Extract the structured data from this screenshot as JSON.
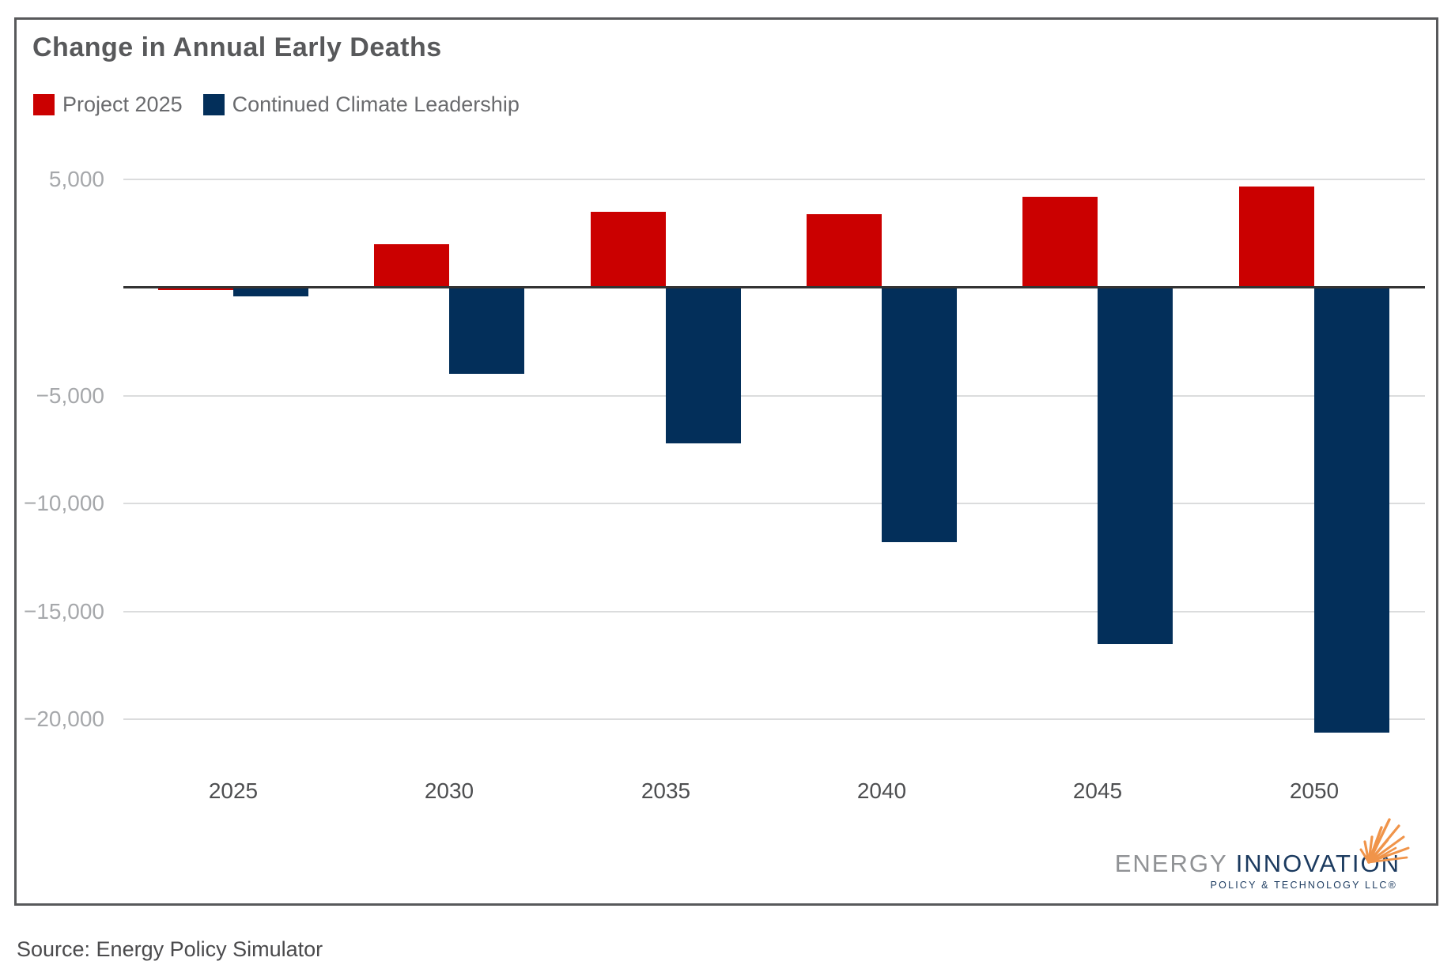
{
  "title": "Change in Annual Early Deaths",
  "source": "Source: Energy Policy Simulator",
  "legend": {
    "items": [
      {
        "label": "Project 2025"
      },
      {
        "label": "Continued Climate Leadership"
      }
    ]
  },
  "logo": {
    "word1": "ENERGY",
    "word2": "INNOVATION",
    "subtext": "POLICY & TECHNOLOGY LLC®",
    "gray": "#909295",
    "navy": "#1B3A5F",
    "orange": "#F0944A"
  },
  "colors": {
    "project_2025": "#CB0000",
    "continued_climate_leadership": "#032F5A",
    "gridline": "#DBDCDD",
    "zero_axis": "#333333",
    "panel_border": "#58595B",
    "title_text": "#58595B",
    "y_tick_text": "#A6A8AB",
    "x_tick_text": "#4D4E50"
  },
  "chart_data": {
    "type": "bar",
    "title": "Change in Annual Early Deaths",
    "categories": [
      "2025",
      "2030",
      "2035",
      "2040",
      "2045",
      "2050"
    ],
    "series": [
      {
        "name": "Project 2025",
        "color": "#CB0000",
        "values": [
          -100,
          2000,
          3500,
          3400,
          4200,
          4700
        ]
      },
      {
        "name": "Continued Climate Leadership",
        "color": "#032F5A",
        "values": [
          -400,
          -4000,
          -7200,
          -11800,
          -16500,
          -20600
        ]
      }
    ],
    "xlabel": "",
    "ylabel": "",
    "ylim": [
      -21500,
      5500
    ],
    "yticks": [
      {
        "value": 5000,
        "label": "5,000"
      },
      {
        "value": -5000,
        "label": "−5,000"
      },
      {
        "value": -10000,
        "label": "−10,000"
      },
      {
        "value": -15000,
        "label": "−15,000"
      },
      {
        "value": -20000,
        "label": "−20,000"
      }
    ],
    "zero_axis_shown": true,
    "grid": "horizontal",
    "legend_position": "top-left"
  }
}
